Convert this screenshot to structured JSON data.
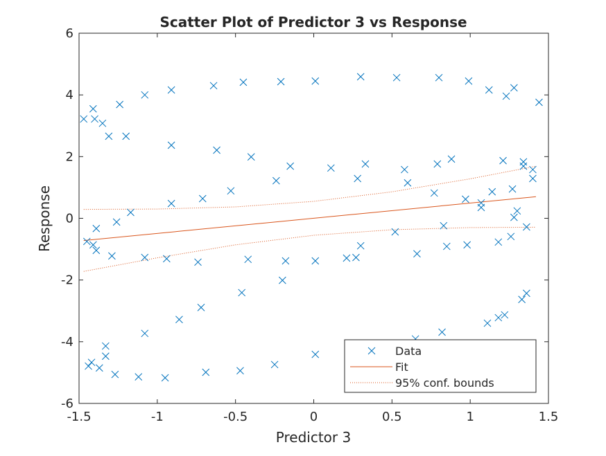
{
  "chart_data": {
    "type": "scatter",
    "title": "Scatter Plot of Predictor 3 vs Response",
    "xlabel": "Predictor 3",
    "ylabel": "Response",
    "xlim": [
      -1.5,
      1.5
    ],
    "ylim": [
      -6,
      6
    ],
    "xticks": [
      -1.5,
      -1,
      -0.5,
      0,
      0.5,
      1,
      1.5
    ],
    "xtick_labels": [
      "-1.5",
      "-1",
      "-0.5",
      "0",
      "0.5",
      "1",
      "1.5"
    ],
    "yticks": [
      -6,
      -4,
      -2,
      0,
      2,
      4,
      6
    ],
    "ytick_labels": [
      "-6",
      "-4",
      "-2",
      "0",
      "2",
      "4",
      "6"
    ],
    "grid": false,
    "legend_position": "bottom-right",
    "legend": [
      "Data",
      "Fit",
      "95% conf. bounds"
    ],
    "colors": {
      "data": "#0072BD",
      "fit": "#D95319",
      "bounds": "#D95319"
    },
    "series": [
      {
        "name": "Data",
        "marker": "x",
        "x": [
          -1.47,
          -1.41,
          -1.4,
          -1.35,
          -1.31,
          -1.24,
          -1.2,
          -1.08,
          -0.91,
          -0.64,
          -0.45,
          -0.21,
          0.01,
          0.3,
          0.53,
          0.8,
          0.99,
          1.12,
          1.23,
          1.28,
          1.44,
          -0.91,
          -0.62,
          -0.4,
          -0.15,
          -0.24,
          -0.53,
          -0.71,
          -0.91,
          -1.17,
          -1.26,
          -1.39,
          -1.45,
          -1.41,
          -1.39,
          -1.29,
          -1.08,
          -0.94,
          -0.74,
          -0.42,
          -0.18,
          0.01,
          0.21,
          0.27,
          0.3,
          0.11,
          0.33,
          0.28,
          0.58,
          0.6,
          0.79,
          0.88,
          0.77,
          0.97,
          1.07,
          1.07,
          1.14,
          1.27,
          1.21,
          1.34,
          1.34,
          1.4,
          1.4,
          1.36,
          1.3,
          1.28,
          1.26,
          1.18,
          0.98,
          0.85,
          0.83,
          0.66,
          0.52,
          -0.72,
          -0.46,
          -0.2,
          -0.86,
          -1.08,
          -1.33,
          -1.33,
          -1.44,
          -1.42,
          -1.37,
          -1.27,
          -1.12,
          -0.95,
          -0.69,
          -0.47,
          -0.25,
          0.01,
          0.65,
          0.82,
          1.11,
          1.18,
          1.22,
          1.33,
          1.36
        ],
        "y": [
          3.22,
          3.55,
          3.22,
          3.08,
          2.66,
          3.69,
          2.66,
          4.0,
          4.16,
          4.3,
          4.41,
          4.43,
          4.45,
          4.59,
          4.56,
          4.56,
          4.45,
          4.16,
          3.96,
          4.23,
          3.76,
          2.37,
          2.21,
          1.99,
          1.69,
          1.22,
          0.89,
          0.64,
          0.48,
          0.19,
          -0.12,
          -0.33,
          -0.75,
          -0.86,
          -1.04,
          -1.22,
          -1.27,
          -1.31,
          -1.42,
          -1.33,
          -1.38,
          -1.38,
          -1.29,
          -1.27,
          -0.89,
          1.63,
          1.76,
          1.29,
          1.58,
          1.15,
          1.76,
          1.92,
          0.82,
          0.62,
          0.5,
          0.35,
          0.86,
          0.95,
          1.87,
          1.83,
          1.69,
          1.58,
          1.29,
          -0.28,
          0.24,
          0.03,
          -0.59,
          -0.77,
          -0.86,
          -0.91,
          -0.24,
          -1.15,
          -0.44,
          -2.89,
          -2.41,
          -2.01,
          -3.28,
          -3.73,
          -4.14,
          -4.47,
          -4.79,
          -4.67,
          -4.85,
          -5.06,
          -5.14,
          -5.17,
          -4.99,
          -4.94,
          -4.74,
          -4.41,
          -3.91,
          -3.69,
          -3.4,
          -3.22,
          -3.13,
          -2.63,
          -2.43
        ]
      },
      {
        "name": "Fit",
        "type": "line",
        "x": [
          -1.47,
          1.42
        ],
        "y": [
          -0.72,
          0.7
        ]
      },
      {
        "name": "95% conf. bounds",
        "type": "line",
        "x": [
          -1.47,
          -1,
          -0.5,
          0,
          0.5,
          1,
          1.42
        ],
        "upper": [
          0.29,
          0.3,
          0.37,
          0.55,
          0.86,
          1.28,
          1.69
        ],
        "lower": [
          -1.72,
          -1.28,
          -0.86,
          -0.55,
          -0.37,
          -0.3,
          -0.29
        ]
      }
    ]
  }
}
